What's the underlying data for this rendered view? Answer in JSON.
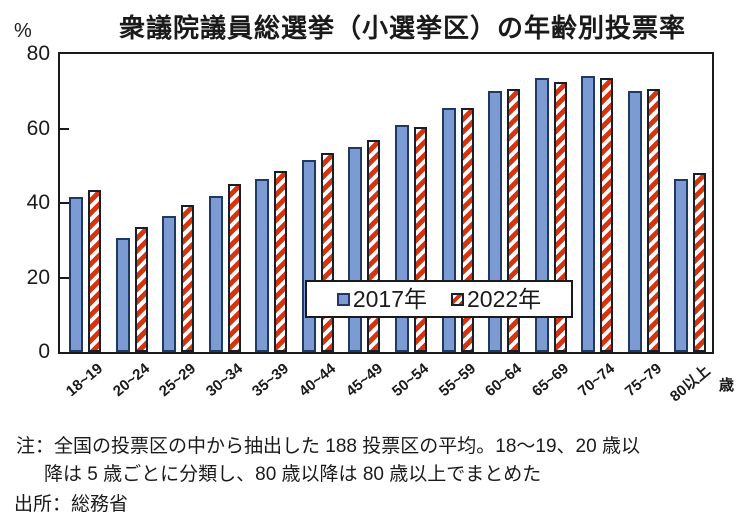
{
  "y_axis": {
    "unit": "%",
    "ticks": [
      80,
      60,
      40,
      20,
      0
    ]
  },
  "x_axis": {
    "unit": "歳"
  },
  "legend": [
    {
      "label": "2017年",
      "swatch": "blue-solid-square"
    },
    {
      "label": "2022年",
      "swatch": "red-diagonal-stripe-square"
    }
  ],
  "notes": {
    "line1": "注：全国の投票区の中から抽出した 188 投票区の平均。18～19、20 歳以",
    "line2": "降は 5 歳ごとに分類し、80 歳以降は 80 歳以上でまとめた",
    "source": "出所：総務省"
  },
  "colors": {
    "bar_2017_fill": "#7c9bd2",
    "bar_2017_border": "#1f3864",
    "bar_2022_stripe": "#d6330f",
    "bar_2022_background": "#ffffff",
    "axis": "#1a1a1a",
    "text": "#1a1a1a"
  },
  "chart_data": {
    "type": "bar",
    "title": "衆議院議員総選挙（小選挙区）の年齢別投票率",
    "categories": [
      "18~19",
      "20~24",
      "25~29",
      "30~34",
      "35~39",
      "40~44",
      "45~49",
      "50~54",
      "55~59",
      "60~64",
      "65~69",
      "70~74",
      "75~79",
      "80以上"
    ],
    "series": [
      {
        "name": "2017年",
        "values": [
          41.5,
          30.5,
          36.5,
          42.0,
          46.5,
          51.5,
          55.0,
          61.0,
          65.5,
          70.0,
          73.5,
          74.0,
          70.0,
          46.5
        ]
      },
      {
        "name": "2022年",
        "values": [
          43.5,
          33.5,
          39.5,
          45.0,
          48.5,
          53.5,
          57.0,
          60.5,
          65.5,
          70.5,
          72.5,
          73.5,
          70.5,
          48.0
        ]
      }
    ],
    "xlabel": "歳",
    "ylabel": "%",
    "ylim": [
      0,
      80
    ],
    "yticks": [
      0,
      20,
      40,
      60,
      80
    ],
    "grid": false,
    "legend_position": "inside-bottom-center"
  }
}
